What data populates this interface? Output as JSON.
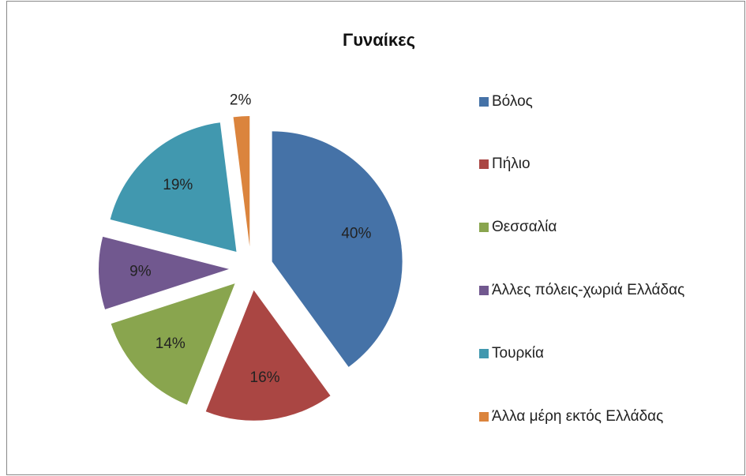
{
  "chart_data": {
    "type": "pie",
    "title": "Γυναίκες",
    "categories": [
      "Βόλος",
      "Πήλιο",
      "Θεσσαλία",
      "Άλλες πόλεις-χωριά Ελλάδας",
      "Τουρκία",
      "Άλλα μέρη εκτός Ελλάδας"
    ],
    "values": [
      40,
      16,
      14,
      9,
      19,
      2
    ],
    "value_labels": [
      "40%",
      "16%",
      "14%",
      "9%",
      "19%",
      "2%"
    ],
    "colors": [
      "#4572a7",
      "#aa4643",
      "#89a54e",
      "#71588f",
      "#4198af",
      "#db843d"
    ],
    "legend": "right"
  }
}
